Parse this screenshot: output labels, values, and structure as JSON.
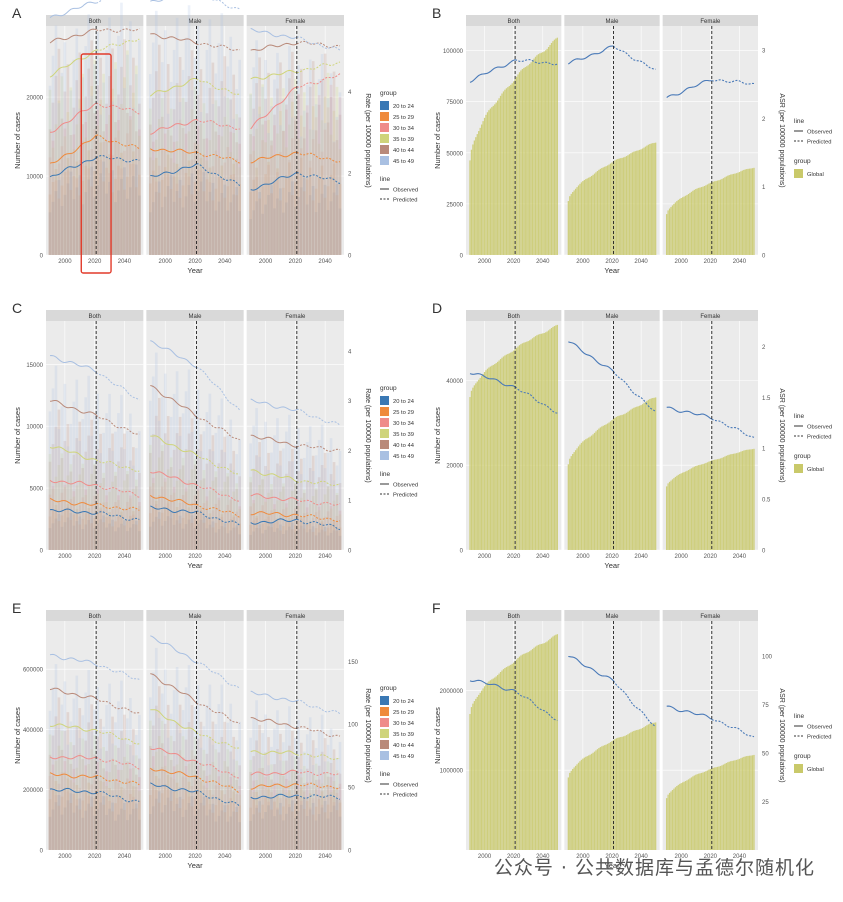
{
  "watermark": "公众号 · 公共数据库与孟德尔随机化",
  "colors": {
    "panel_bg": "#ebebeb",
    "strip_bg": "#d9d9d9",
    "grid": "#ffffff",
    "global_fill": "#c9c96a",
    "observed_line": "#4a7ab8",
    "highlight_box": "#e23a2a",
    "age_groups": [
      "#3a78b4",
      "#ef8a3c",
      "#ef8c8a",
      "#cfd47a",
      "#b98a7a",
      "#a9c0e2"
    ]
  },
  "legend": {
    "group_title": "group",
    "age_groups": [
      "20 to 24",
      "25 to 29",
      "30 to 34",
      "35 to 39",
      "40 to 44",
      "45 to 49"
    ],
    "line_title": "line",
    "line_types": [
      "Observed",
      "Predicted"
    ],
    "global_label": "Global"
  },
  "chart_data": [
    {
      "panel": "A",
      "type": "bar",
      "facets": [
        "Both",
        "Male",
        "Female"
      ],
      "xlabel": "Year",
      "ylabel": "Number of cases",
      "y2label": "Rate (per 100000 populations)",
      "xticks": [
        2000,
        2020,
        2040
      ],
      "yticks": [
        0,
        10000,
        20000
      ],
      "ylim": [
        0,
        29000
      ],
      "y2ticks": [
        0,
        2,
        4
      ],
      "y2lim": [
        0,
        5.6
      ],
      "projection_year": 2021,
      "series": [
        {
          "name": "20 to 24",
          "Both": [
            1.9,
            2.4,
            2.3
          ],
          "Male": [
            1.9,
            2.2,
            1.7
          ],
          "Female": [
            1.6,
            2.0,
            1.8
          ]
        },
        {
          "name": "25 to 29",
          "Both": [
            2.2,
            2.9,
            2.6
          ],
          "Male": [
            2.6,
            2.5,
            2.3
          ],
          "Female": [
            2.3,
            2.5,
            2.3
          ]
        },
        {
          "name": "30 to 34",
          "Both": [
            3.0,
            3.7,
            3.5
          ],
          "Male": [
            3.0,
            3.3,
            3.1
          ],
          "Female": [
            3.1,
            4.1,
            4.4
          ]
        },
        {
          "name": "35 to 39",
          "Both": [
            4.4,
            5.0,
            5.3
          ],
          "Male": [
            3.9,
            4.3,
            3.9
          ],
          "Female": [
            4.3,
            4.5,
            4.7
          ]
        },
        {
          "name": "40 to 44",
          "Both": [
            5.2,
            5.5,
            5.5
          ],
          "Male": [
            5.4,
            5.2,
            5.0
          ],
          "Female": [
            5.0,
            5.2,
            5.1
          ]
        },
        {
          "name": "45 to 49",
          "Both": [
            5.8,
            6.2,
            6.6
          ],
          "Male": [
            6.2,
            6.4,
            6.0
          ],
          "Female": [
            5.5,
            5.3,
            5.0
          ]
        }
      ]
    },
    {
      "panel": "B",
      "type": "area",
      "facets": [
        "Both",
        "Male",
        "Female"
      ],
      "xlabel": "Year",
      "ylabel": "Number of cases",
      "y2label": "ASR (per 100000 populations)",
      "xticks": [
        2000,
        2020,
        2040
      ],
      "yticks": [
        0,
        25000,
        50000,
        75000,
        100000
      ],
      "ylim": [
        0,
        112000
      ],
      "y2ticks": [
        0,
        1,
        2,
        3
      ],
      "y2lim": [
        0,
        3.35
      ],
      "projection_year": 2021,
      "global_cases": {
        "Both": [
          46000,
          106000
        ],
        "Male": [
          26000,
          55000
        ],
        "Female": [
          20000,
          43000
        ]
      },
      "asr": {
        "Both": [
          2.55,
          2.85,
          2.8
        ],
        "Male": [
          2.8,
          3.05,
          2.7
        ],
        "Female": [
          2.3,
          2.57,
          2.5
        ]
      }
    },
    {
      "panel": "C",
      "type": "bar",
      "facets": [
        "Both",
        "Male",
        "Female"
      ],
      "xlabel": "Year",
      "ylabel": "Number of cases",
      "y2label": "Rate (per 100000 populations)",
      "xticks": [
        2000,
        2020,
        2040
      ],
      "yticks": [
        0,
        5000,
        10000,
        15000
      ],
      "ylim": [
        0,
        18500
      ],
      "y2ticks": [
        0,
        1,
        2,
        3,
        4
      ],
      "y2lim": [
        0,
        4.6
      ],
      "projection_year": 2021,
      "series": [
        {
          "name": "20 to 24",
          "Both": [
            0.8,
            0.75,
            0.6
          ],
          "Male": [
            0.85,
            0.75,
            0.5
          ],
          "Female": [
            0.55,
            0.6,
            0.45
          ]
        },
        {
          "name": "25 to 29",
          "Both": [
            1.0,
            0.9,
            0.8
          ],
          "Male": [
            1.1,
            0.9,
            0.7
          ],
          "Female": [
            0.75,
            0.7,
            0.6
          ]
        },
        {
          "name": "30 to 34",
          "Both": [
            1.4,
            1.3,
            1.1
          ],
          "Male": [
            1.6,
            1.3,
            1.0
          ],
          "Female": [
            1.1,
            1.0,
            0.9
          ]
        },
        {
          "name": "35 to 39",
          "Both": [
            2.1,
            1.8,
            1.6
          ],
          "Male": [
            2.3,
            1.9,
            1.5
          ],
          "Female": [
            1.6,
            1.4,
            1.3
          ]
        },
        {
          "name": "40 to 44",
          "Both": [
            3.0,
            2.7,
            2.3
          ],
          "Male": [
            3.3,
            2.7,
            2.2
          ],
          "Female": [
            2.3,
            2.1,
            2.0
          ]
        },
        {
          "name": "45 to 49",
          "Both": [
            3.9,
            3.6,
            3.0
          ],
          "Male": [
            4.2,
            3.7,
            2.8
          ],
          "Female": [
            3.0,
            2.8,
            2.5
          ]
        }
      ]
    },
    {
      "panel": "D",
      "type": "area",
      "facets": [
        "Both",
        "Male",
        "Female"
      ],
      "xlabel": "Year",
      "ylabel": "Number of cases",
      "y2label": "ASR (per 100000 populations)",
      "xticks": [
        2000,
        2020,
        2040
      ],
      "yticks": [
        0,
        20000,
        40000
      ],
      "ylim": [
        0,
        54000
      ],
      "y2ticks": [
        0,
        0.5,
        1.0,
        1.5,
        2.0
      ],
      "y2lim": [
        0,
        2.25
      ],
      "projection_year": 2021,
      "global_cases": {
        "Both": [
          36000,
          53000
        ],
        "Male": [
          20000,
          36000
        ],
        "Female": [
          15000,
          24000
        ]
      },
      "asr": {
        "Both": [
          1.75,
          1.6,
          1.35
        ],
        "Male": [
          2.05,
          1.75,
          1.35
        ],
        "Female": [
          1.4,
          1.3,
          1.1
        ]
      }
    },
    {
      "panel": "E",
      "type": "bar",
      "facets": [
        "Both",
        "Male",
        "Female"
      ],
      "xlabel": "Year",
      "ylabel": "Number of cases",
      "y2label": "Rate (per 100000 populations)",
      "xticks": [
        2000,
        2020,
        2040
      ],
      "yticks": [
        0,
        200000,
        400000,
        600000
      ],
      "ylim": [
        0,
        760000
      ],
      "y2ticks": [
        0,
        50,
        100,
        150
      ],
      "y2lim": [
        0,
        182
      ],
      "projection_year": 2021,
      "series": [
        {
          "name": "20 to 24",
          "Both": [
            48,
            46,
            38
          ],
          "Male": [
            52,
            46,
            35
          ],
          "Female": [
            42,
            43,
            42
          ]
        },
        {
          "name": "25 to 29",
          "Both": [
            60,
            58,
            52
          ],
          "Male": [
            65,
            58,
            47
          ],
          "Female": [
            50,
            52,
            50
          ]
        },
        {
          "name": "30 to 34",
          "Both": [
            74,
            73,
            66
          ],
          "Male": [
            82,
            70,
            58
          ],
          "Female": [
            60,
            62,
            60
          ]
        },
        {
          "name": "35 to 39",
          "Both": [
            100,
            95,
            85
          ],
          "Male": [
            112,
            93,
            80
          ],
          "Female": [
            78,
            77,
            72
          ]
        },
        {
          "name": "40 to 44",
          "Both": [
            128,
            120,
            108
          ],
          "Male": [
            140,
            118,
            100
          ],
          "Female": [
            105,
            98,
            90
          ]
        },
        {
          "name": "45 to 49",
          "Both": [
            155,
            148,
            135
          ],
          "Male": [
            170,
            150,
            128
          ],
          "Female": [
            125,
            118,
            108
          ]
        }
      ]
    },
    {
      "panel": "F",
      "type": "area",
      "facets": [
        "Both",
        "Male",
        "Female"
      ],
      "xlabel": "Year",
      "ylabel": "Number of cases",
      "y2label": "ASR (per 100000 populations)",
      "xticks": [
        2000,
        2020,
        2040
      ],
      "yticks": [
        1000000,
        2000000
      ],
      "ylim": [
        0,
        2870000
      ],
      "y2ticks": [
        25,
        50,
        75,
        100
      ],
      "y2lim": [
        0,
        118
      ],
      "projection_year": 2021,
      "global_cases": {
        "Both": [
          1700000,
          2700000
        ],
        "Male": [
          900000,
          1600000
        ],
        "Female": [
          650000,
          1200000
        ]
      },
      "asr": {
        "Both": [
          88,
          82,
          67
        ],
        "Male": [
          100,
          87,
          63
        ],
        "Female": [
          74,
          68,
          58
        ]
      }
    }
  ]
}
